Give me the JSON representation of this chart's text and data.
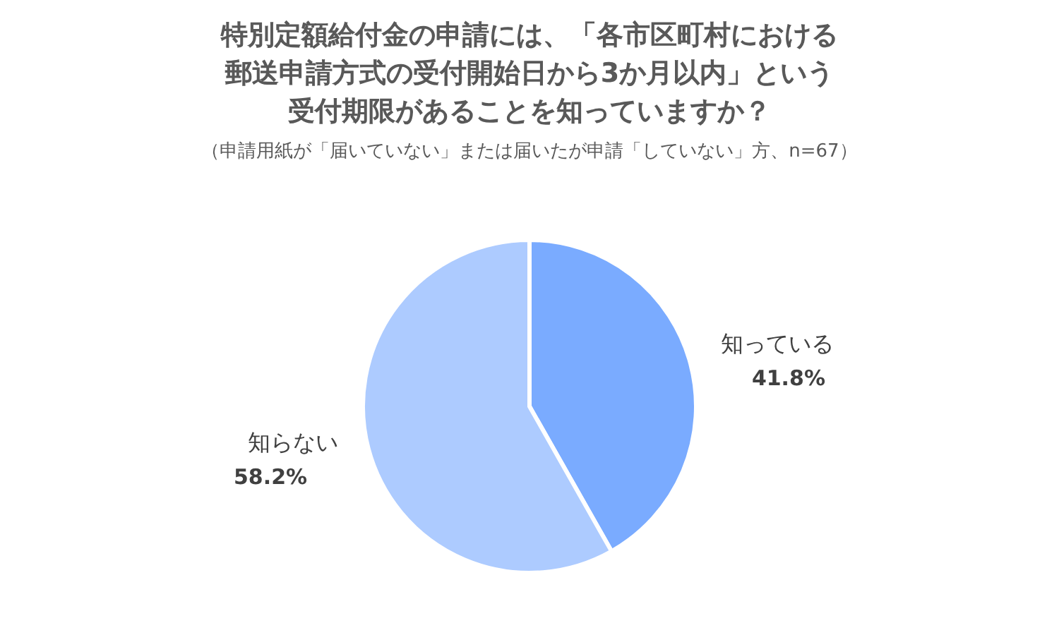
{
  "chart_data": {
    "type": "pie",
    "title": "特別定額給付金の申請には、「各市区町村における郵送申請方式の受付開始日から3か月以内」という受付期限があることを知っていますか？",
    "subtitle": "（申請用紙が「届いていない」または届いたが申請「していない」方、n=67）",
    "categories": [
      "知っている",
      "知らない"
    ],
    "values": [
      41.8,
      58.2
    ],
    "colors": [
      "#7aabff",
      "#adcbff"
    ],
    "value_labels": [
      "41.8%",
      "58.2%"
    ]
  }
}
